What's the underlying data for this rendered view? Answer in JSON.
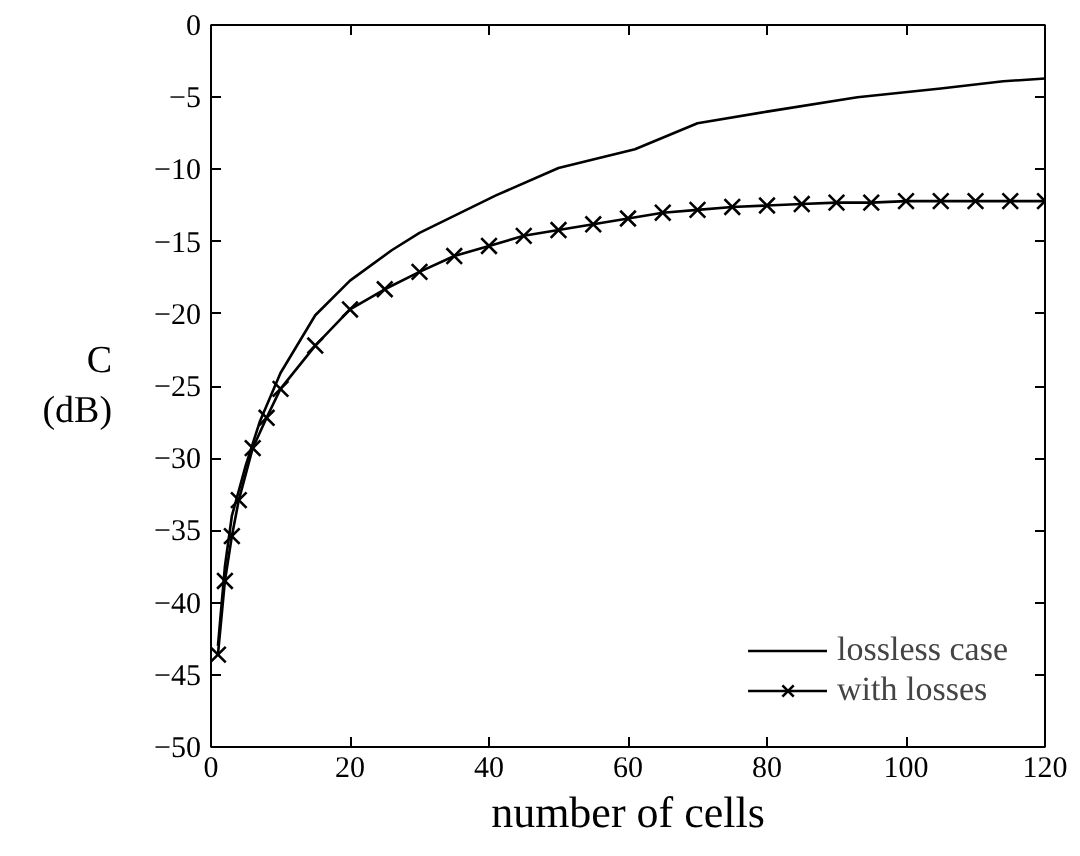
{
  "chart_data": {
    "type": "line",
    "xlabel": "number of cells",
    "ylabel": "C\n(dB)",
    "xlim": [
      0,
      120
    ],
    "ylim": [
      -50,
      0
    ],
    "xticks": [
      0,
      20,
      40,
      60,
      80,
      100,
      120
    ],
    "yticks": [
      -50,
      -45,
      -40,
      -35,
      -30,
      -25,
      -20,
      -15,
      -10,
      -5,
      0
    ],
    "grid": false,
    "legend": "bottom right",
    "series": [
      {
        "name": "lossless case",
        "color": "#000000",
        "marker": "none",
        "x": [
          1,
          2,
          3,
          5,
          7,
          10,
          15,
          20,
          26,
          30,
          41,
          50,
          56,
          61,
          70,
          80,
          93,
          105,
          114,
          120
        ],
        "values": [
          -43,
          -37.5,
          -34,
          -30.5,
          -27.5,
          -24.1,
          -20.1,
          -17.7,
          -15.6,
          -14.4,
          -11.8,
          -9.9,
          -9.2,
          -8.6,
          -6.8,
          -6.0,
          -5.0,
          -4.4,
          -3.9,
          -3.7
        ]
      },
      {
        "name": "with losses",
        "color": "#000000",
        "marker": "cross",
        "x": [
          1,
          2,
          3,
          4,
          6,
          8,
          10,
          15,
          20,
          25,
          30,
          35,
          40,
          45,
          50,
          55,
          60,
          65,
          70,
          75,
          80,
          85,
          90,
          95,
          100,
          105,
          110,
          115,
          120
        ],
        "values": [
          -43.6,
          -38.5,
          -35.4,
          -32.9,
          -29.3,
          -27.2,
          -25.2,
          -22.2,
          -19.7,
          -18.3,
          -17.1,
          -16.0,
          -15.3,
          -14.6,
          -14.2,
          -13.8,
          -13.4,
          -13.0,
          -12.8,
          -12.6,
          -12.5,
          -12.4,
          -12.3,
          -12.3,
          -12.2,
          -12.2,
          -12.2,
          -12.2,
          -12.2
        ]
      }
    ]
  }
}
